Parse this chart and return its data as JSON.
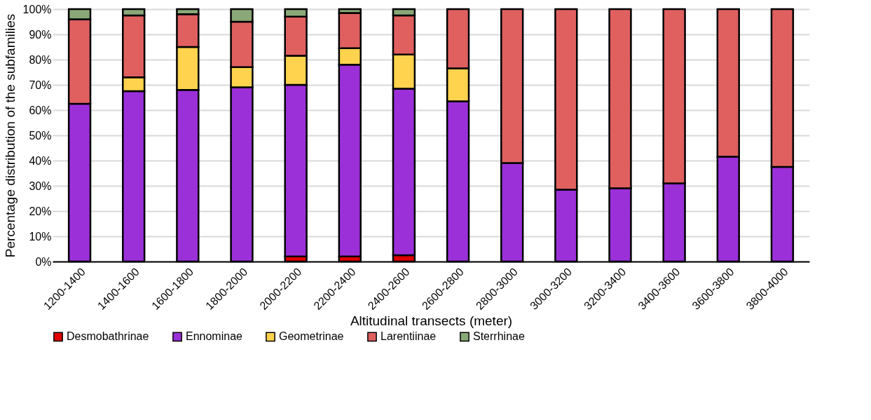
{
  "chart_data": {
    "type": "bar",
    "stacked": true,
    "xlabel": "Altitudinal transects (meter)",
    "ylabel": "Percentage distribution of the subfamilies",
    "categories": [
      "1200-1400",
      "1400-1600",
      "1600-1800",
      "1800-2000",
      "2000-2200",
      "2200-2400",
      "2400-2600",
      "2600-2800",
      "2800-3000",
      "3000-3200",
      "3200-3400",
      "3400-3600",
      "3600-3800",
      "3800-4000"
    ],
    "series": [
      {
        "name": "Desmobathrinae",
        "color": "#e00000",
        "values": [
          0,
          0,
          0,
          0,
          2,
          2,
          2.5,
          0,
          0,
          0,
          0,
          0,
          0,
          0
        ]
      },
      {
        "name": "Ennominae",
        "color": "#9b30d9",
        "values": [
          62.5,
          67.5,
          68,
          69,
          68,
          76,
          66,
          63.5,
          39,
          28.5,
          29,
          31,
          41.5,
          37.5
        ]
      },
      {
        "name": "Geometrinae",
        "color": "#ffd34d",
        "values": [
          0,
          5.5,
          17,
          8,
          11.5,
          6.5,
          13.5,
          13,
          0,
          0,
          0,
          0,
          0,
          0
        ]
      },
      {
        "name": "Larentiinae",
        "color": "#e06060",
        "values": [
          33.5,
          24.5,
          13,
          18,
          15.5,
          14,
          15.5,
          23.5,
          61,
          71.5,
          71,
          69,
          58.5,
          62.5
        ]
      },
      {
        "name": "Sterrhinae",
        "color": "#8aa878",
        "values": [
          4,
          2.5,
          2,
          5,
          3,
          1.5,
          2.5,
          0,
          0,
          0,
          0,
          0,
          0,
          0
        ]
      }
    ],
    "ylim": [
      0,
      100
    ],
    "yticks": [
      {
        "value": 0,
        "label": "0%"
      },
      {
        "value": 10,
        "label": "10%"
      },
      {
        "value": 20,
        "label": "20%"
      },
      {
        "value": 30,
        "label": "30%"
      },
      {
        "value": 40,
        "label": "40%"
      },
      {
        "value": 50,
        "label": "50%"
      },
      {
        "value": 60,
        "label": "60%"
      },
      {
        "value": 70,
        "label": "70%"
      },
      {
        "value": 80,
        "label": "80%"
      },
      {
        "value": 90,
        "label": "90%"
      },
      {
        "value": 100,
        "label": "100%"
      }
    ],
    "grid": "y",
    "legend": "bottom"
  }
}
